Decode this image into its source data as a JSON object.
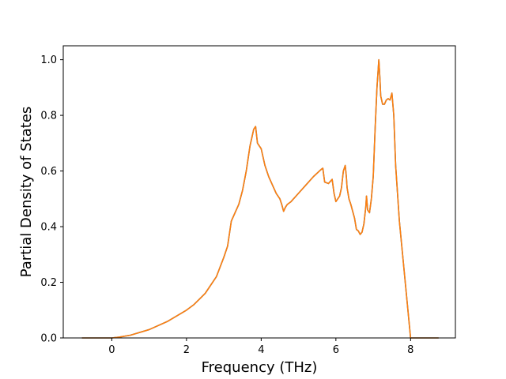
{
  "chart_data": {
    "type": "line",
    "title": "",
    "xlabel": "Frequency (THz)",
    "ylabel": "Partial Density of States",
    "xlim": [
      -1.3,
      9.2
    ],
    "ylim": [
      0.0,
      1.05
    ],
    "xticks": [
      0,
      2,
      4,
      6,
      8
    ],
    "xtick_labels": [
      "0",
      "2",
      "4",
      "6",
      "8"
    ],
    "yticks": [
      0.0,
      0.2,
      0.4,
      0.6,
      0.8,
      1.0
    ],
    "ytick_labels": [
      "0.0",
      "0.2",
      "0.4",
      "0.6",
      "0.8",
      "1.0"
    ],
    "grid": false,
    "legend": "none",
    "series": [
      {
        "color": "#1f77b4",
        "x": [
          -0.8,
          0.0,
          0.2,
          0.5,
          1.0,
          1.5,
          2.0,
          2.2,
          2.5,
          2.8,
          3.0,
          3.1,
          3.2,
          3.4,
          3.5,
          3.6,
          3.7,
          3.75,
          3.8,
          3.85,
          3.9,
          4.0,
          4.1,
          4.2,
          4.3,
          4.4,
          4.5,
          4.55,
          4.6,
          4.65,
          4.7,
          4.8,
          5.0,
          5.2,
          5.4,
          5.6,
          5.65,
          5.7,
          5.8,
          5.9,
          5.95,
          6.0,
          6.1,
          6.15,
          6.2,
          6.25,
          6.28,
          6.3,
          6.35,
          6.4,
          6.5,
          6.55,
          6.6,
          6.65,
          6.7,
          6.75,
          6.8,
          6.82,
          6.85,
          6.9,
          6.95,
          7.0,
          7.05,
          7.1,
          7.15,
          7.18,
          7.2,
          7.25,
          7.3,
          7.35,
          7.4,
          7.45,
          7.5,
          7.55,
          7.6,
          7.65,
          7.7,
          7.8,
          7.9,
          7.95,
          8.0,
          8.75
        ],
        "y": [
          0.0,
          0.0,
          0.003,
          0.01,
          0.03,
          0.06,
          0.1,
          0.12,
          0.16,
          0.22,
          0.29,
          0.33,
          0.42,
          0.48,
          0.53,
          0.6,
          0.69,
          0.72,
          0.75,
          0.76,
          0.7,
          0.68,
          0.62,
          0.58,
          0.55,
          0.52,
          0.5,
          0.48,
          0.455,
          0.47,
          0.48,
          0.49,
          0.52,
          0.55,
          0.58,
          0.605,
          0.61,
          0.56,
          0.555,
          0.57,
          0.52,
          0.49,
          0.51,
          0.54,
          0.6,
          0.62,
          0.58,
          0.54,
          0.5,
          0.48,
          0.43,
          0.39,
          0.385,
          0.372,
          0.38,
          0.41,
          0.47,
          0.51,
          0.46,
          0.45,
          0.5,
          0.58,
          0.75,
          0.9,
          1.0,
          0.93,
          0.87,
          0.84,
          0.84,
          0.855,
          0.86,
          0.855,
          0.88,
          0.8,
          0.62,
          0.52,
          0.42,
          0.28,
          0.14,
          0.07,
          0.0,
          0.0
        ]
      },
      {
        "color": "#ff7f0e",
        "x": [
          -0.8,
          0.0,
          0.2,
          0.5,
          1.0,
          1.5,
          2.0,
          2.2,
          2.5,
          2.8,
          3.0,
          3.1,
          3.2,
          3.4,
          3.5,
          3.6,
          3.7,
          3.75,
          3.8,
          3.85,
          3.9,
          4.0,
          4.1,
          4.2,
          4.3,
          4.4,
          4.5,
          4.55,
          4.6,
          4.65,
          4.7,
          4.8,
          5.0,
          5.2,
          5.4,
          5.6,
          5.65,
          5.7,
          5.8,
          5.9,
          5.95,
          6.0,
          6.1,
          6.15,
          6.2,
          6.25,
          6.28,
          6.3,
          6.35,
          6.4,
          6.5,
          6.55,
          6.6,
          6.65,
          6.7,
          6.75,
          6.8,
          6.82,
          6.85,
          6.9,
          6.95,
          7.0,
          7.05,
          7.1,
          7.15,
          7.18,
          7.2,
          7.25,
          7.3,
          7.35,
          7.4,
          7.45,
          7.5,
          7.55,
          7.6,
          7.65,
          7.7,
          7.8,
          7.9,
          7.95,
          8.0,
          8.75
        ],
        "y": [
          0.0,
          0.0,
          0.003,
          0.01,
          0.03,
          0.06,
          0.1,
          0.12,
          0.16,
          0.22,
          0.29,
          0.33,
          0.42,
          0.48,
          0.53,
          0.6,
          0.69,
          0.72,
          0.75,
          0.76,
          0.7,
          0.68,
          0.62,
          0.58,
          0.55,
          0.52,
          0.5,
          0.48,
          0.455,
          0.47,
          0.48,
          0.49,
          0.52,
          0.55,
          0.58,
          0.605,
          0.61,
          0.56,
          0.555,
          0.57,
          0.52,
          0.49,
          0.51,
          0.54,
          0.6,
          0.62,
          0.58,
          0.54,
          0.5,
          0.48,
          0.43,
          0.39,
          0.385,
          0.372,
          0.38,
          0.41,
          0.47,
          0.51,
          0.46,
          0.45,
          0.5,
          0.58,
          0.75,
          0.9,
          1.0,
          0.93,
          0.87,
          0.84,
          0.84,
          0.855,
          0.86,
          0.855,
          0.88,
          0.8,
          0.62,
          0.52,
          0.42,
          0.28,
          0.14,
          0.07,
          0.0,
          0.0
        ]
      }
    ]
  }
}
